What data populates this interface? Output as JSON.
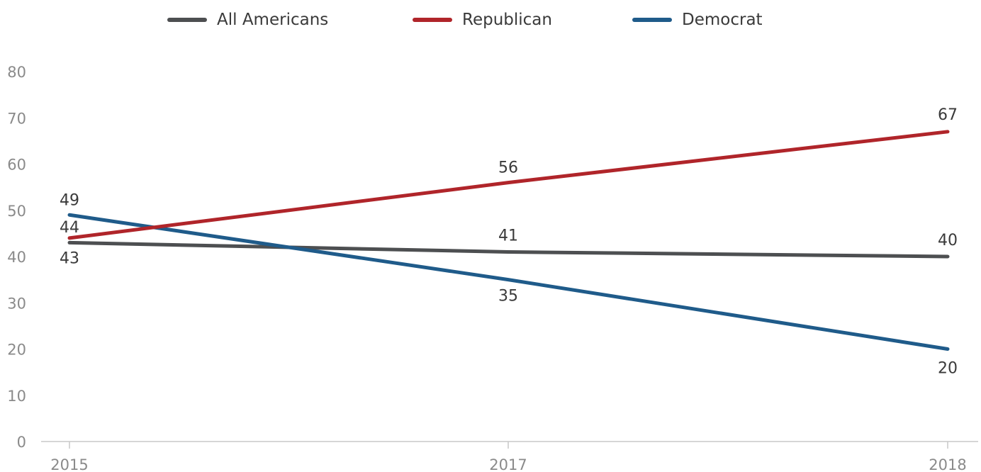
{
  "chart_data": {
    "type": "line",
    "title": "",
    "xlabel": "",
    "ylabel": "",
    "x": [
      "2015",
      "2017",
      "2018"
    ],
    "ylim": [
      0,
      80
    ],
    "yticks": [
      0,
      10,
      20,
      30,
      40,
      50,
      60,
      70,
      80
    ],
    "grid": false,
    "legend_position": "top",
    "series": [
      {
        "name": "All Americans",
        "color": "#4d4f51",
        "values": [
          43,
          41,
          40
        ],
        "labels": [
          "43",
          "41",
          "40"
        ]
      },
      {
        "name": "Republican",
        "color": "#b0252a",
        "values": [
          44,
          56,
          67
        ],
        "labels": [
          "44",
          "56",
          "67"
        ]
      },
      {
        "name": "Democrat",
        "color": "#1f5b8a",
        "values": [
          49,
          35,
          20
        ],
        "labels": [
          "49",
          "35",
          "20"
        ]
      }
    ]
  }
}
